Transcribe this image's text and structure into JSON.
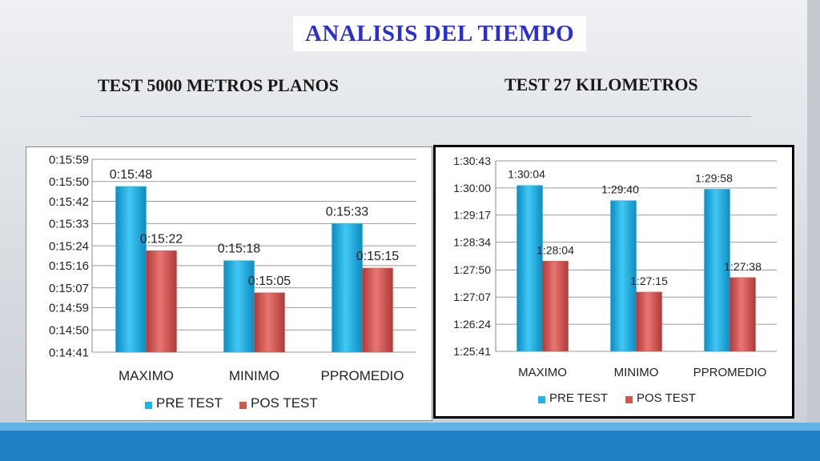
{
  "slide": {
    "title": "ANALISIS DEL TIEMPO",
    "subtitle_left": "TEST 5000 METROS PLANOS",
    "subtitle_right": "TEST 27 KILOMETROS"
  },
  "colors": {
    "pre_test": "#19b6ee",
    "pos_test": "#d9534f",
    "title": "#2a2fd1",
    "footer": "#1f80c4"
  },
  "chart_data": [
    {
      "type": "bar",
      "title": "",
      "categories": [
        "MAXIMO",
        "MINIMO",
        "PPROMEDIO"
      ],
      "series": [
        {
          "name": "PRE TEST",
          "values": [
            948,
            918,
            933
          ],
          "labels": [
            "0:15:48",
            "0:15:18",
            "0:15:33"
          ]
        },
        {
          "name": "POS TEST",
          "values": [
            922,
            905,
            915
          ],
          "labels": [
            "0:15:22",
            "0:15:05",
            "0:15:15"
          ]
        }
      ],
      "value_unit": "seconds",
      "ylim": [
        881,
        959
      ],
      "yticks": [
        881,
        890,
        899,
        907,
        916,
        924,
        933,
        942,
        950,
        959
      ],
      "ytick_labels": [
        "0:14:41",
        "0:14:50",
        "0:14:59",
        "0:15:07",
        "0:15:16",
        "0:15:24",
        "0:15:33",
        "0:15:42",
        "0:15:50",
        "0:15:59"
      ],
      "grid": true,
      "legend": "bottom"
    },
    {
      "type": "bar",
      "title": "",
      "categories": [
        "MAXIMO",
        "MINIMO",
        "PPROMEDIO"
      ],
      "series": [
        {
          "name": "PRE TEST",
          "values": [
            5404,
            5380,
            5398
          ],
          "labels": [
            "1:30:04",
            "1:29:40",
            "1:29:58"
          ]
        },
        {
          "name": "POS TEST",
          "values": [
            5284,
            5235,
            5258
          ],
          "labels": [
            "1:28:04",
            "1:27:15",
            "1:27:38"
          ]
        }
      ],
      "value_unit": "seconds",
      "ylim": [
        5141,
        5443
      ],
      "yticks": [
        5141,
        5184,
        5227,
        5270,
        5314,
        5357,
        5400,
        5443
      ],
      "ytick_labels": [
        "1:25:41",
        "1:26:24",
        "1:27:07",
        "1:27:50",
        "1:28:34",
        "1:29:17",
        "1:30:00",
        "1:30:43"
      ],
      "grid": true,
      "legend": "bottom"
    }
  ]
}
